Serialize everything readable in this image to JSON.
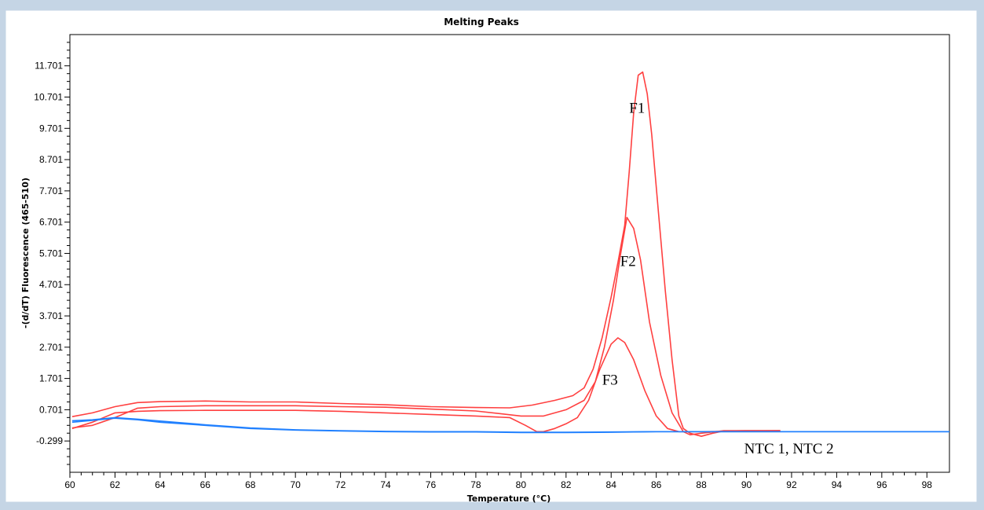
{
  "chart_data": {
    "type": "line",
    "title": "Melting Peaks",
    "xlabel": "Temperature (°C)",
    "ylabel": "-(d/dT) Fluorescence (465-510)",
    "xlim": [
      60,
      99
    ],
    "ylim": [
      -1.3,
      12.7
    ],
    "x_ticks": [
      60,
      62,
      64,
      66,
      68,
      70,
      72,
      74,
      76,
      78,
      80,
      82,
      84,
      86,
      88,
      90,
      92,
      94,
      96,
      98
    ],
    "y_ticks": [
      -0.299,
      0.701,
      1.701,
      2.701,
      3.701,
      4.701,
      5.701,
      6.701,
      7.701,
      8.701,
      9.701,
      10.701,
      11.701
    ],
    "y_tick_labels": [
      "-0.299",
      "0.701",
      "1.701",
      "2.701",
      "3.701",
      "4.701",
      "5.701",
      "6.701",
      "7.701",
      "8.701",
      "9.701",
      "10.701",
      "11.701"
    ],
    "grid": false,
    "annotations": [
      {
        "text": "F1",
        "x": 84.8,
        "y": 10.2
      },
      {
        "text": "F2",
        "x": 84.4,
        "y": 5.3
      },
      {
        "text": "F3",
        "x": 83.6,
        "y": 1.5
      },
      {
        "text": "NTC 1, NTC 2",
        "x": 89.9,
        "y": -0.7
      }
    ],
    "series": [
      {
        "color": "#ff4040",
        "points": [
          [
            60.1,
            0.48
          ],
          [
            61,
            0.6
          ],
          [
            62,
            0.8
          ],
          [
            63,
            0.93
          ],
          [
            64,
            0.96
          ],
          [
            66,
            0.98
          ],
          [
            68,
            0.95
          ],
          [
            70,
            0.95
          ],
          [
            72,
            0.9
          ],
          [
            74,
            0.86
          ],
          [
            76,
            0.8
          ],
          [
            78,
            0.77
          ],
          [
            79.5,
            0.76
          ],
          [
            80.5,
            0.85
          ],
          [
            81.5,
            1.0
          ],
          [
            82.3,
            1.15
          ],
          [
            82.8,
            1.4
          ],
          [
            83.2,
            2.0
          ],
          [
            83.6,
            3.0
          ],
          [
            84,
            4.3
          ],
          [
            84.3,
            5.4
          ],
          [
            84.6,
            6.6
          ],
          [
            84.8,
            8.3
          ],
          [
            85,
            10.2
          ],
          [
            85.2,
            11.4
          ],
          [
            85.4,
            11.5
          ],
          [
            85.6,
            10.8
          ],
          [
            85.8,
            9.5
          ],
          [
            86.1,
            7.0
          ],
          [
            86.4,
            4.5
          ],
          [
            86.7,
            2.3
          ],
          [
            87,
            0.5
          ],
          [
            87.2,
            0.1
          ],
          [
            87.5,
            -0.05
          ],
          [
            88,
            -0.15
          ],
          [
            88.5,
            -0.05
          ],
          [
            89,
            0.02
          ],
          [
            90,
            0.03
          ],
          [
            91.5,
            0.03
          ]
        ]
      },
      {
        "color": "#ff4040",
        "points": [
          [
            60.1,
            0.12
          ],
          [
            61,
            0.2
          ],
          [
            62,
            0.45
          ],
          [
            63,
            0.75
          ],
          [
            64,
            0.8
          ],
          [
            66,
            0.83
          ],
          [
            68,
            0.83
          ],
          [
            70,
            0.83
          ],
          [
            72,
            0.8
          ],
          [
            74,
            0.78
          ],
          [
            76,
            0.72
          ],
          [
            78,
            0.66
          ],
          [
            80,
            0.5
          ],
          [
            81,
            0.5
          ],
          [
            82,
            0.7
          ],
          [
            82.8,
            1.0
          ],
          [
            83.3,
            1.6
          ],
          [
            83.7,
            2.7
          ],
          [
            84.1,
            4.2
          ],
          [
            84.4,
            5.6
          ],
          [
            84.7,
            6.85
          ],
          [
            85,
            6.5
          ],
          [
            85.3,
            5.5
          ],
          [
            85.7,
            3.5
          ],
          [
            86.2,
            1.8
          ],
          [
            86.7,
            0.6
          ],
          [
            87.2,
            0.0
          ],
          [
            87.5,
            -0.1
          ],
          [
            88,
            -0.05
          ],
          [
            89,
            0.03
          ],
          [
            91.5,
            0.03
          ]
        ]
      },
      {
        "color": "#ff4040",
        "points": [
          [
            60.1,
            0.1
          ],
          [
            61,
            0.3
          ],
          [
            62,
            0.6
          ],
          [
            63,
            0.65
          ],
          [
            64,
            0.67
          ],
          [
            66,
            0.68
          ],
          [
            68,
            0.68
          ],
          [
            70,
            0.68
          ],
          [
            72,
            0.65
          ],
          [
            74,
            0.6
          ],
          [
            76,
            0.55
          ],
          [
            78,
            0.5
          ],
          [
            79.5,
            0.45
          ],
          [
            80.2,
            0.2
          ],
          [
            80.7,
            0.0
          ],
          [
            81,
            0.0
          ],
          [
            81.5,
            0.1
          ],
          [
            82,
            0.25
          ],
          [
            82.5,
            0.45
          ],
          [
            83,
            1.0
          ],
          [
            83.5,
            2.0
          ],
          [
            84,
            2.8
          ],
          [
            84.3,
            3.0
          ],
          [
            84.6,
            2.85
          ],
          [
            85,
            2.3
          ],
          [
            85.5,
            1.3
          ],
          [
            86,
            0.5
          ],
          [
            86.5,
            0.1
          ],
          [
            87,
            0.0
          ],
          [
            88,
            0.0
          ],
          [
            91.5,
            0.03
          ]
        ]
      },
      {
        "color": "#2080ff",
        "points": [
          [
            60.1,
            0.35
          ],
          [
            61,
            0.38
          ],
          [
            62,
            0.45
          ],
          [
            63,
            0.4
          ],
          [
            64,
            0.34
          ],
          [
            66,
            0.22
          ],
          [
            68,
            0.12
          ],
          [
            70,
            0.06
          ],
          [
            72,
            0.03
          ],
          [
            74,
            0.01
          ],
          [
            76,
            0.0
          ],
          [
            78,
            0.0
          ],
          [
            80,
            -0.02
          ],
          [
            82,
            -0.02
          ],
          [
            84,
            -0.01
          ],
          [
            86,
            0.0
          ],
          [
            88,
            0.0
          ],
          [
            90,
            0.0
          ],
          [
            99,
            0.0
          ]
        ]
      },
      {
        "color": "#2080ff",
        "points": [
          [
            60.1,
            0.3
          ],
          [
            61,
            0.36
          ],
          [
            62,
            0.43
          ],
          [
            63,
            0.38
          ],
          [
            64,
            0.3
          ],
          [
            66,
            0.2
          ],
          [
            68,
            0.1
          ],
          [
            70,
            0.05
          ],
          [
            72,
            0.02
          ],
          [
            74,
            0.0
          ],
          [
            76,
            -0.01
          ],
          [
            78,
            -0.01
          ],
          [
            80,
            -0.03
          ],
          [
            82,
            -0.03
          ],
          [
            84,
            -0.02
          ],
          [
            86,
            0.0
          ],
          [
            88,
            0.0
          ],
          [
            90,
            0.0
          ],
          [
            99,
            0.0
          ]
        ]
      }
    ]
  }
}
